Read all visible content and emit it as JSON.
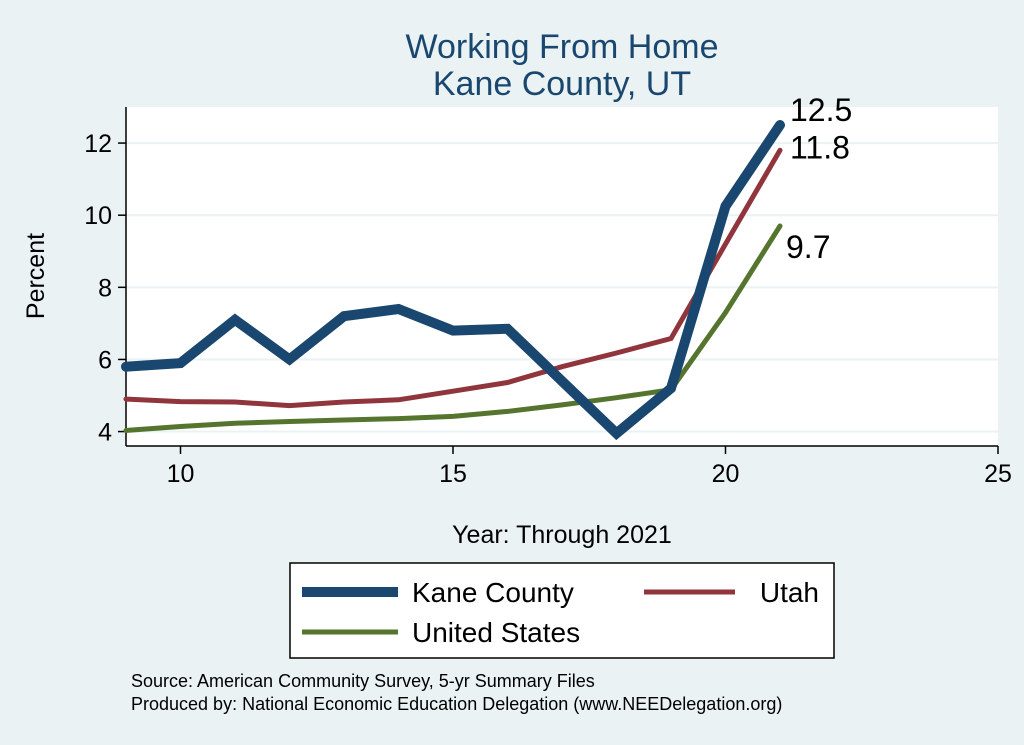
{
  "chart_data": {
    "type": "line",
    "title": "Working From Home",
    "subtitle": "Kane County, UT",
    "xlabel": "Year: Through 2021",
    "ylabel": "Percent",
    "xlim": [
      9,
      25
    ],
    "ylim": [
      3.6,
      13.0
    ],
    "xticks": [
      10,
      15,
      20,
      25
    ],
    "yticks": [
      4,
      6,
      8,
      10,
      12
    ],
    "grid": true,
    "legend_position": "bottom",
    "series": [
      {
        "name": "Kane County",
        "color": "#1a476f",
        "width": 10,
        "x": [
          9,
          10,
          11,
          12,
          13,
          14,
          15,
          16,
          17,
          18,
          19,
          20,
          21
        ],
        "y": [
          5.8,
          5.9,
          7.1,
          6.0,
          7.2,
          7.4,
          6.8,
          6.85,
          5.4,
          3.95,
          5.2,
          10.25,
          12.5
        ],
        "end_label": "12.5"
      },
      {
        "name": "Utah",
        "color": "#90353b",
        "width": 5,
        "x": [
          9,
          10,
          11,
          12,
          13,
          14,
          15,
          16,
          17,
          18,
          19,
          20,
          21
        ],
        "y": [
          4.9,
          4.83,
          4.82,
          4.72,
          4.82,
          4.88,
          5.12,
          5.36,
          5.8,
          6.18,
          6.58,
          9.2,
          11.8
        ],
        "end_label": "11.8"
      },
      {
        "name": "United States",
        "color": "#55752f",
        "width": 5,
        "x": [
          9,
          10,
          11,
          12,
          13,
          14,
          15,
          16,
          17,
          18,
          19,
          20,
          21
        ],
        "y": [
          4.03,
          4.14,
          4.23,
          4.28,
          4.32,
          4.36,
          4.42,
          4.56,
          4.74,
          4.94,
          5.16,
          7.3,
          9.7
        ],
        "end_label": "9.7"
      }
    ],
    "notes": [
      "Source: American Community Survey, 5-yr Summary Files",
      "Produced by: National Economic Education Delegation (www.NEEDelegation.org)"
    ]
  }
}
